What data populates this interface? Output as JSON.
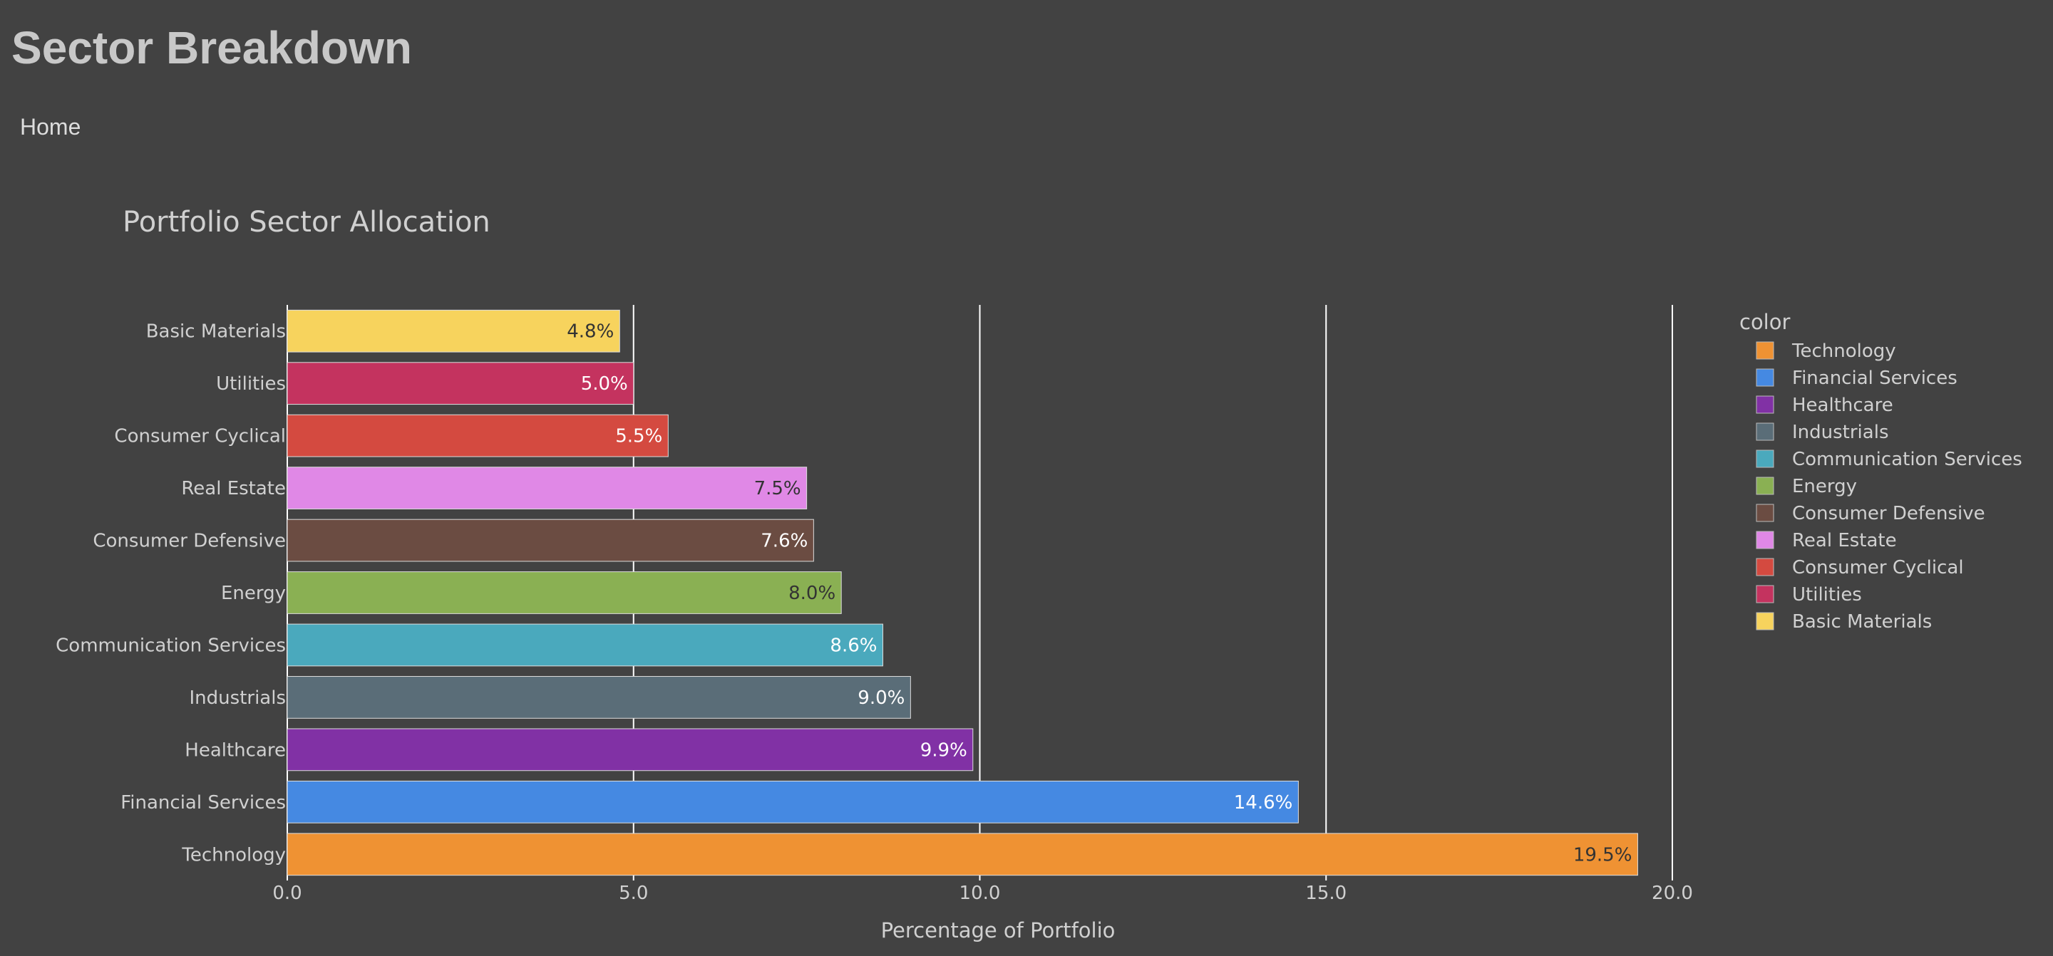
{
  "page": {
    "title": "Sector Breakdown",
    "nav_home": "Home"
  },
  "chart_data": {
    "type": "bar",
    "orientation": "horizontal",
    "title": "Portfolio Sector Allocation",
    "xlabel": "Percentage of Portfolio",
    "ylabel": "",
    "xlim": [
      0,
      20
    ],
    "xticks": [
      "0.0",
      "5.0",
      "10.0",
      "15.0",
      "20.0"
    ],
    "grid": true,
    "legend_title": "color",
    "legend_position": "right",
    "categories": [
      "Basic Materials",
      "Utilities",
      "Consumer Cyclical",
      "Real Estate",
      "Consumer Defensive",
      "Energy",
      "Communication Services",
      "Industrials",
      "Healthcare",
      "Financial Services",
      "Technology"
    ],
    "values": [
      4.8,
      5.0,
      5.5,
      7.5,
      7.6,
      8.0,
      8.6,
      9.0,
      9.9,
      14.6,
      19.5
    ],
    "labels": [
      "4.8%",
      "5.0%",
      "5.5%",
      "7.5%",
      "7.6%",
      "8.0%",
      "8.6%",
      "9.0%",
      "9.9%",
      "14.6%",
      "19.5%"
    ],
    "colors": [
      "#f7d35d",
      "#c4335f",
      "#d44a40",
      "#e088e6",
      "#6b4c42",
      "#8ab053",
      "#4aa9bd",
      "#5a6d78",
      "#8131a5",
      "#4589e2",
      "#ef9233"
    ],
    "label_colors": [
      "#333333",
      "#ffffff",
      "#ffffff",
      "#333333",
      "#ffffff",
      "#333333",
      "#ffffff",
      "#ffffff",
      "#ffffff",
      "#ffffff",
      "#333333"
    ],
    "legend": [
      {
        "name": "Technology",
        "color": "#ef9233"
      },
      {
        "name": "Financial Services",
        "color": "#4589e2"
      },
      {
        "name": "Healthcare",
        "color": "#8131a5"
      },
      {
        "name": "Industrials",
        "color": "#5a6d78"
      },
      {
        "name": "Communication Services",
        "color": "#4aa9bd"
      },
      {
        "name": "Energy",
        "color": "#8ab053"
      },
      {
        "name": "Consumer Defensive",
        "color": "#6b4c42"
      },
      {
        "name": "Real Estate",
        "color": "#e088e6"
      },
      {
        "name": "Consumer Cyclical",
        "color": "#d44a40"
      },
      {
        "name": "Utilities",
        "color": "#c4335f"
      },
      {
        "name": "Basic Materials",
        "color": "#f7d35d"
      }
    ]
  }
}
